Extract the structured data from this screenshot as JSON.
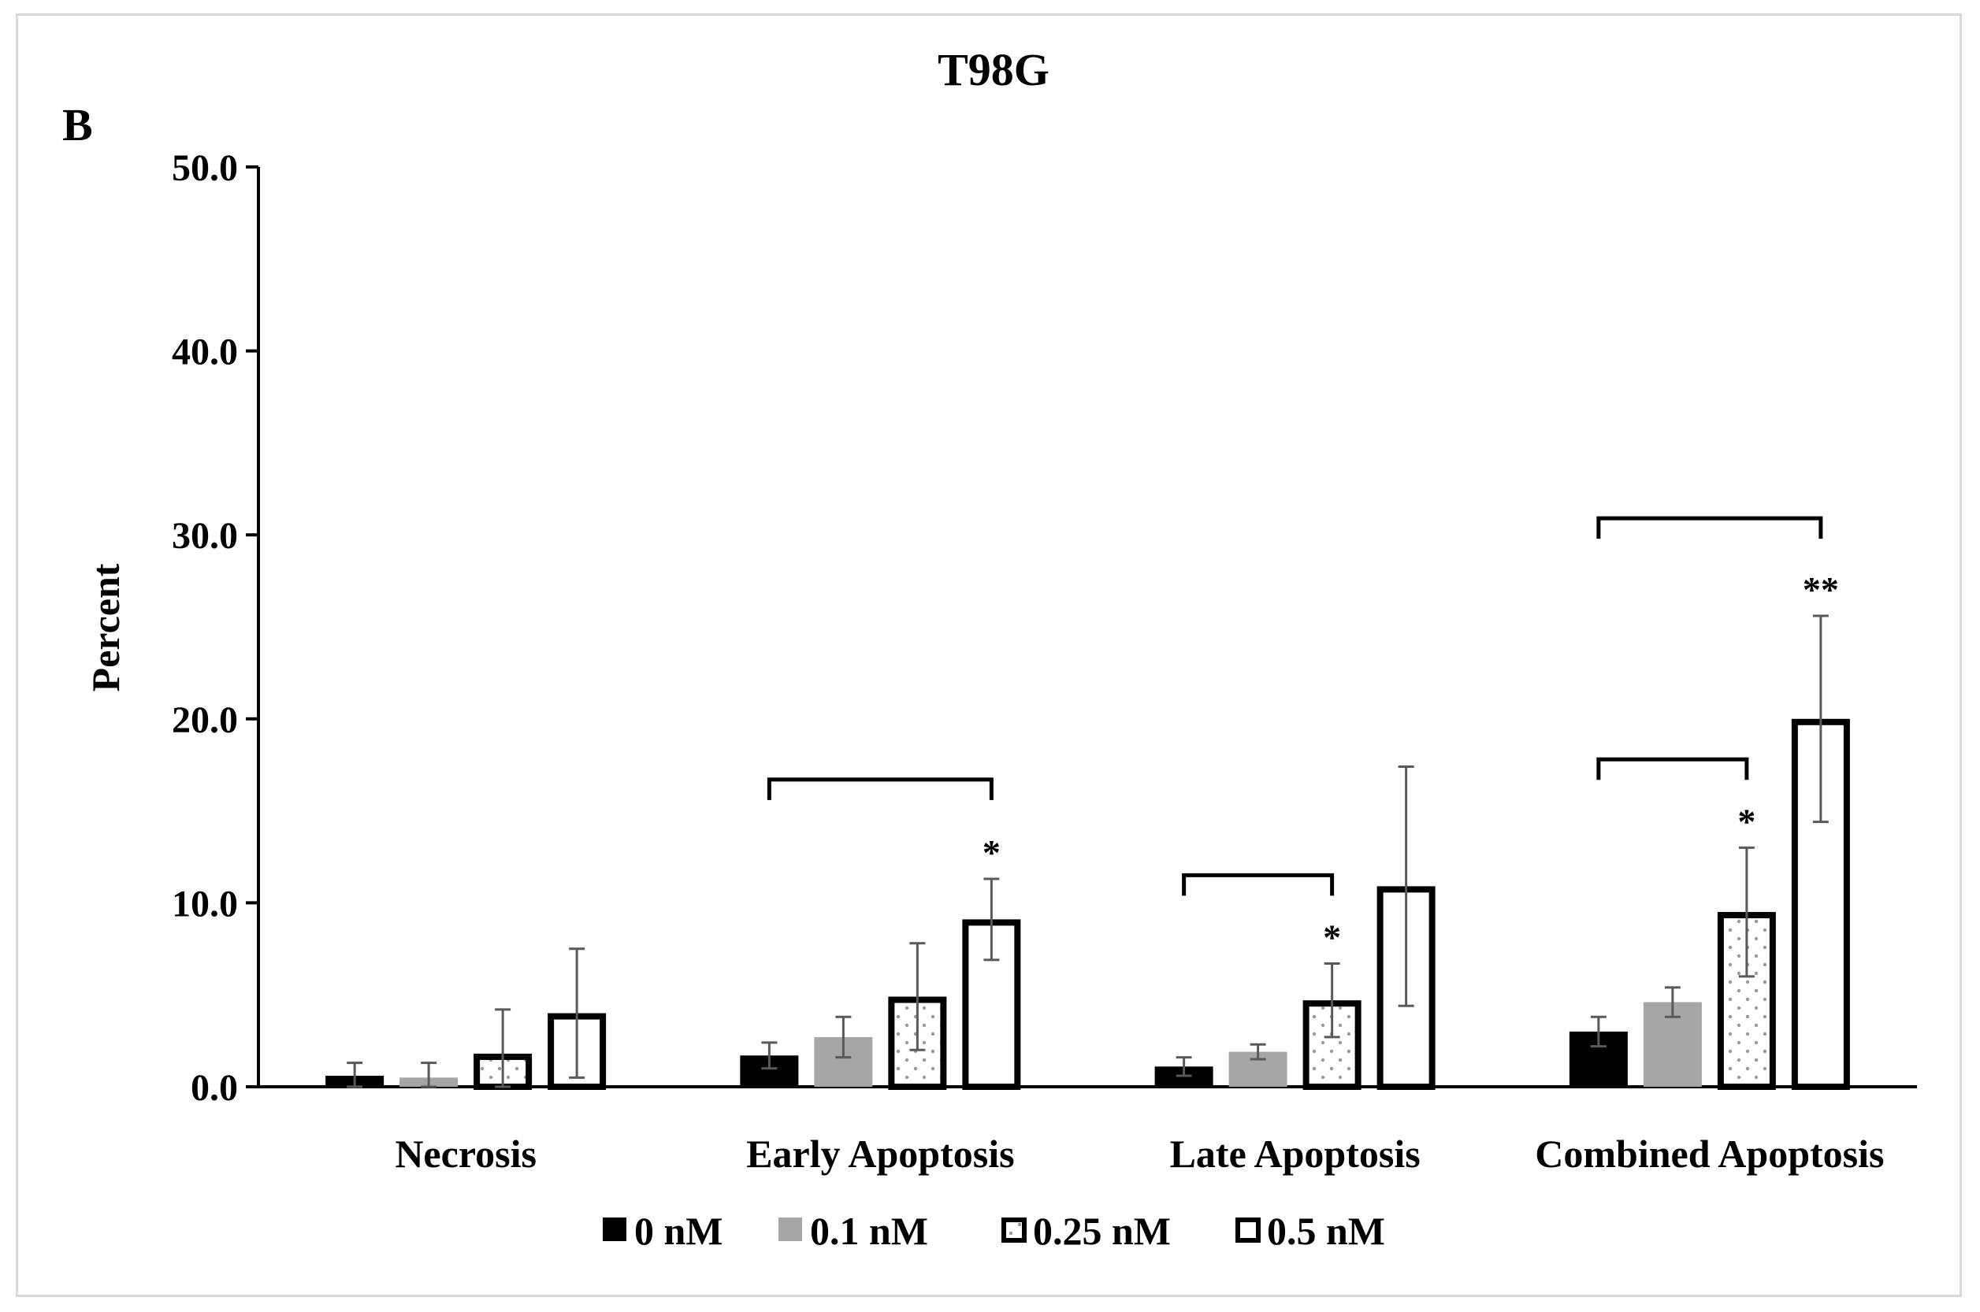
{
  "panel_label": "B",
  "chart_data": {
    "type": "bar",
    "title": "T98G",
    "ylabel": "Percent",
    "xlabel": "",
    "ylim": [
      0,
      50
    ],
    "yticks": [
      0,
      10,
      20,
      30,
      40,
      50
    ],
    "ytick_labels": [
      "0.0",
      "10.0",
      "20.0",
      "30.0",
      "40.0",
      "50.0"
    ],
    "categories": [
      "Necrosis",
      "Early Apoptosis",
      "Late Apoptosis",
      "Combined Apoptosis"
    ],
    "legend_position": "bottom",
    "series": [
      {
        "name": "0 nM",
        "style": "solid",
        "color": "#000000",
        "values": [
          0.6,
          1.7,
          1.1,
          3.0
        ],
        "errors": [
          0.7,
          0.7,
          0.5,
          0.8
        ]
      },
      {
        "name": "0.1 nM",
        "style": "solid",
        "color": "#a6a6a6",
        "values": [
          0.5,
          2.7,
          1.9,
          4.6
        ],
        "errors": [
          0.8,
          1.1,
          0.4,
          0.8
        ]
      },
      {
        "name": "0.25 nM",
        "style": "dotted-outline",
        "color": "#000000",
        "values": [
          1.8,
          4.9,
          4.7,
          9.5
        ],
        "errors": [
          2.4,
          2.9,
          2.0,
          3.5
        ]
      },
      {
        "name": "0.5 nM",
        "style": "outline",
        "color": "#000000",
        "values": [
          4.0,
          9.1,
          10.9,
          20.0
        ],
        "errors": [
          3.5,
          2.2,
          6.5,
          5.6
        ]
      }
    ],
    "significance": [
      {
        "category": 1,
        "from_series": 0,
        "to_series": 3,
        "y": 16.7,
        "label": "*",
        "label_series": 3
      },
      {
        "category": 2,
        "from_series": 0,
        "to_series": 2,
        "y": 11.5,
        "label": "*",
        "label_series": 2
      },
      {
        "category": 3,
        "from_series": 0,
        "to_series": 2,
        "y": 17.8,
        "label": "*",
        "label_series": 2
      },
      {
        "category": 3,
        "from_series": 0,
        "to_series": 3,
        "y": 30.9,
        "label": "**",
        "label_series": 3
      }
    ]
  }
}
